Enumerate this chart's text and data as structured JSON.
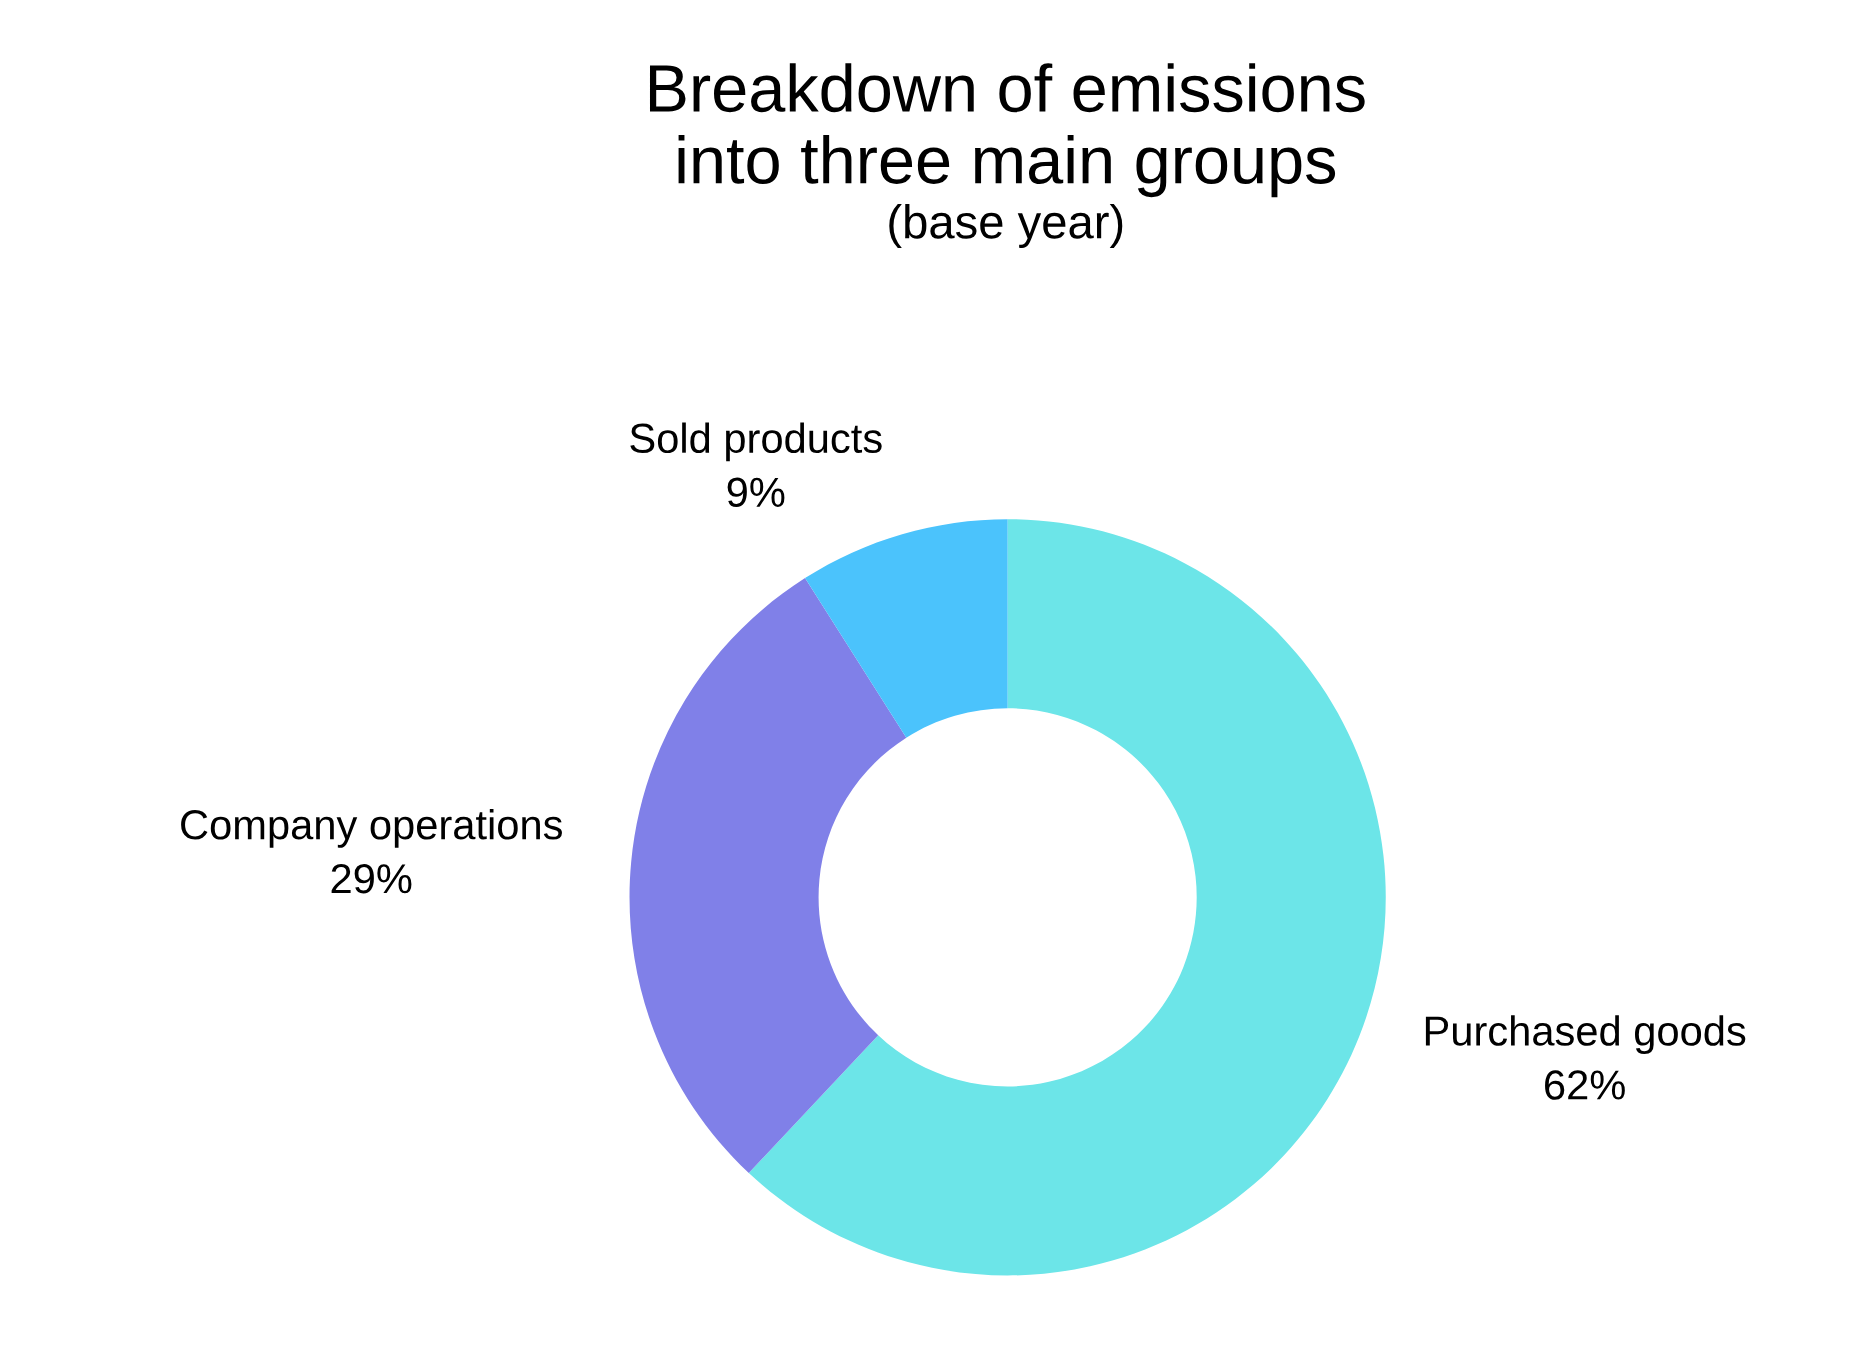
{
  "chart_data": {
    "type": "donut",
    "title": "Breakdown of emissions\ninto three main groups",
    "subtitle": "(base year)",
    "categories": [
      "Purchased goods",
      "Company operations",
      "Sold products"
    ],
    "values": [
      62,
      29,
      9
    ],
    "colors": [
      "#6ce5e8",
      "#8080e8",
      "#4bc3fc"
    ],
    "value_labels": [
      "62%",
      "29%",
      "9%"
    ]
  }
}
